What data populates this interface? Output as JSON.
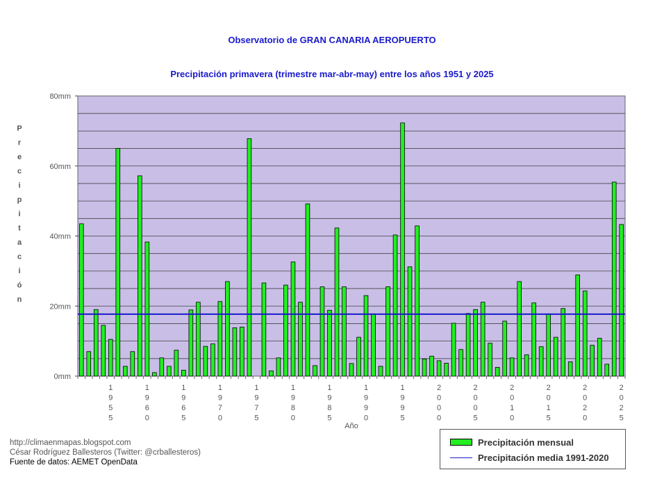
{
  "chart_data": {
    "type": "bar",
    "title": "Observatorio de GRAN CANARIA AEROPUERTO",
    "subtitle": "Precipitación primavera (trimestre mar-abr-may) entre los años 1951 y 2025",
    "xlabel": "Año",
    "ylabel": "Precipitación",
    "ylim": [
      0,
      80
    ],
    "y_ticks": [
      "0mm",
      "20mm",
      "40mm",
      "60mm",
      "80mm"
    ],
    "x_tick_labels": [
      "1955",
      "1960",
      "1965",
      "1970",
      "1975",
      "1980",
      "1985",
      "1990",
      "1995",
      "2000",
      "2005",
      "2010",
      "2015",
      "2020",
      "2025"
    ],
    "x": [
      1951,
      1952,
      1953,
      1954,
      1955,
      1956,
      1957,
      1958,
      1959,
      1960,
      1961,
      1962,
      1963,
      1964,
      1965,
      1966,
      1967,
      1968,
      1969,
      1970,
      1971,
      1972,
      1973,
      1974,
      1975,
      1976,
      1977,
      1978,
      1979,
      1980,
      1981,
      1982,
      1983,
      1984,
      1985,
      1986,
      1987,
      1988,
      1989,
      1990,
      1991,
      1992,
      1993,
      1994,
      1995,
      1996,
      1997,
      1998,
      1999,
      2000,
      2001,
      2002,
      2003,
      2004,
      2005,
      2006,
      2007,
      2008,
      2009,
      2010,
      2011,
      2012,
      2013,
      2014,
      2015,
      2016,
      2017,
      2018,
      2019,
      2020,
      2021,
      2022,
      2023,
      2024,
      2025
    ],
    "series": [
      {
        "name": "Precipitación mensual",
        "color": "#22ee22",
        "values": [
          43.5,
          7,
          19,
          14.5,
          10.5,
          65,
          2.8,
          7,
          57.2,
          38.3,
          1,
          5.2,
          2.8,
          7.4,
          1.7,
          18.9,
          21.1,
          8.5,
          9.2,
          21.3,
          27,
          13.8,
          14,
          67.8,
          0,
          26.6,
          1.5,
          5.2,
          26,
          32.6,
          21.1,
          49.2,
          3,
          25.5,
          18.8,
          42.3,
          25.5,
          3.6,
          11.1,
          23,
          17.8,
          2.8,
          25.5,
          40.3,
          72.3,
          31.2,
          42.9,
          4.9,
          5.7,
          4.4,
          3.7,
          15.1,
          7.6,
          17.9,
          19,
          21.1,
          9.4,
          2.5,
          15.7,
          5.2,
          27,
          6.1,
          20.9,
          8.4,
          17.8,
          11.1,
          19.3,
          4.1,
          28.9,
          24.3,
          8.8,
          10.8,
          3.4,
          55.4,
          43.3
        ]
      },
      {
        "name": "Precipitación media 1991-2020",
        "color": "#1a1acc",
        "value": 17.7
      }
    ],
    "grid": true,
    "legend": "bottom-right",
    "plot_background": "#c8bee6"
  },
  "footer": {
    "line1": "http://climaenmapas.blogspot.com",
    "line2": "César Rodríguez Ballesteros (Twitter: @crballesteros)",
    "line3": "Fuente de datos: AEMET OpenData"
  }
}
